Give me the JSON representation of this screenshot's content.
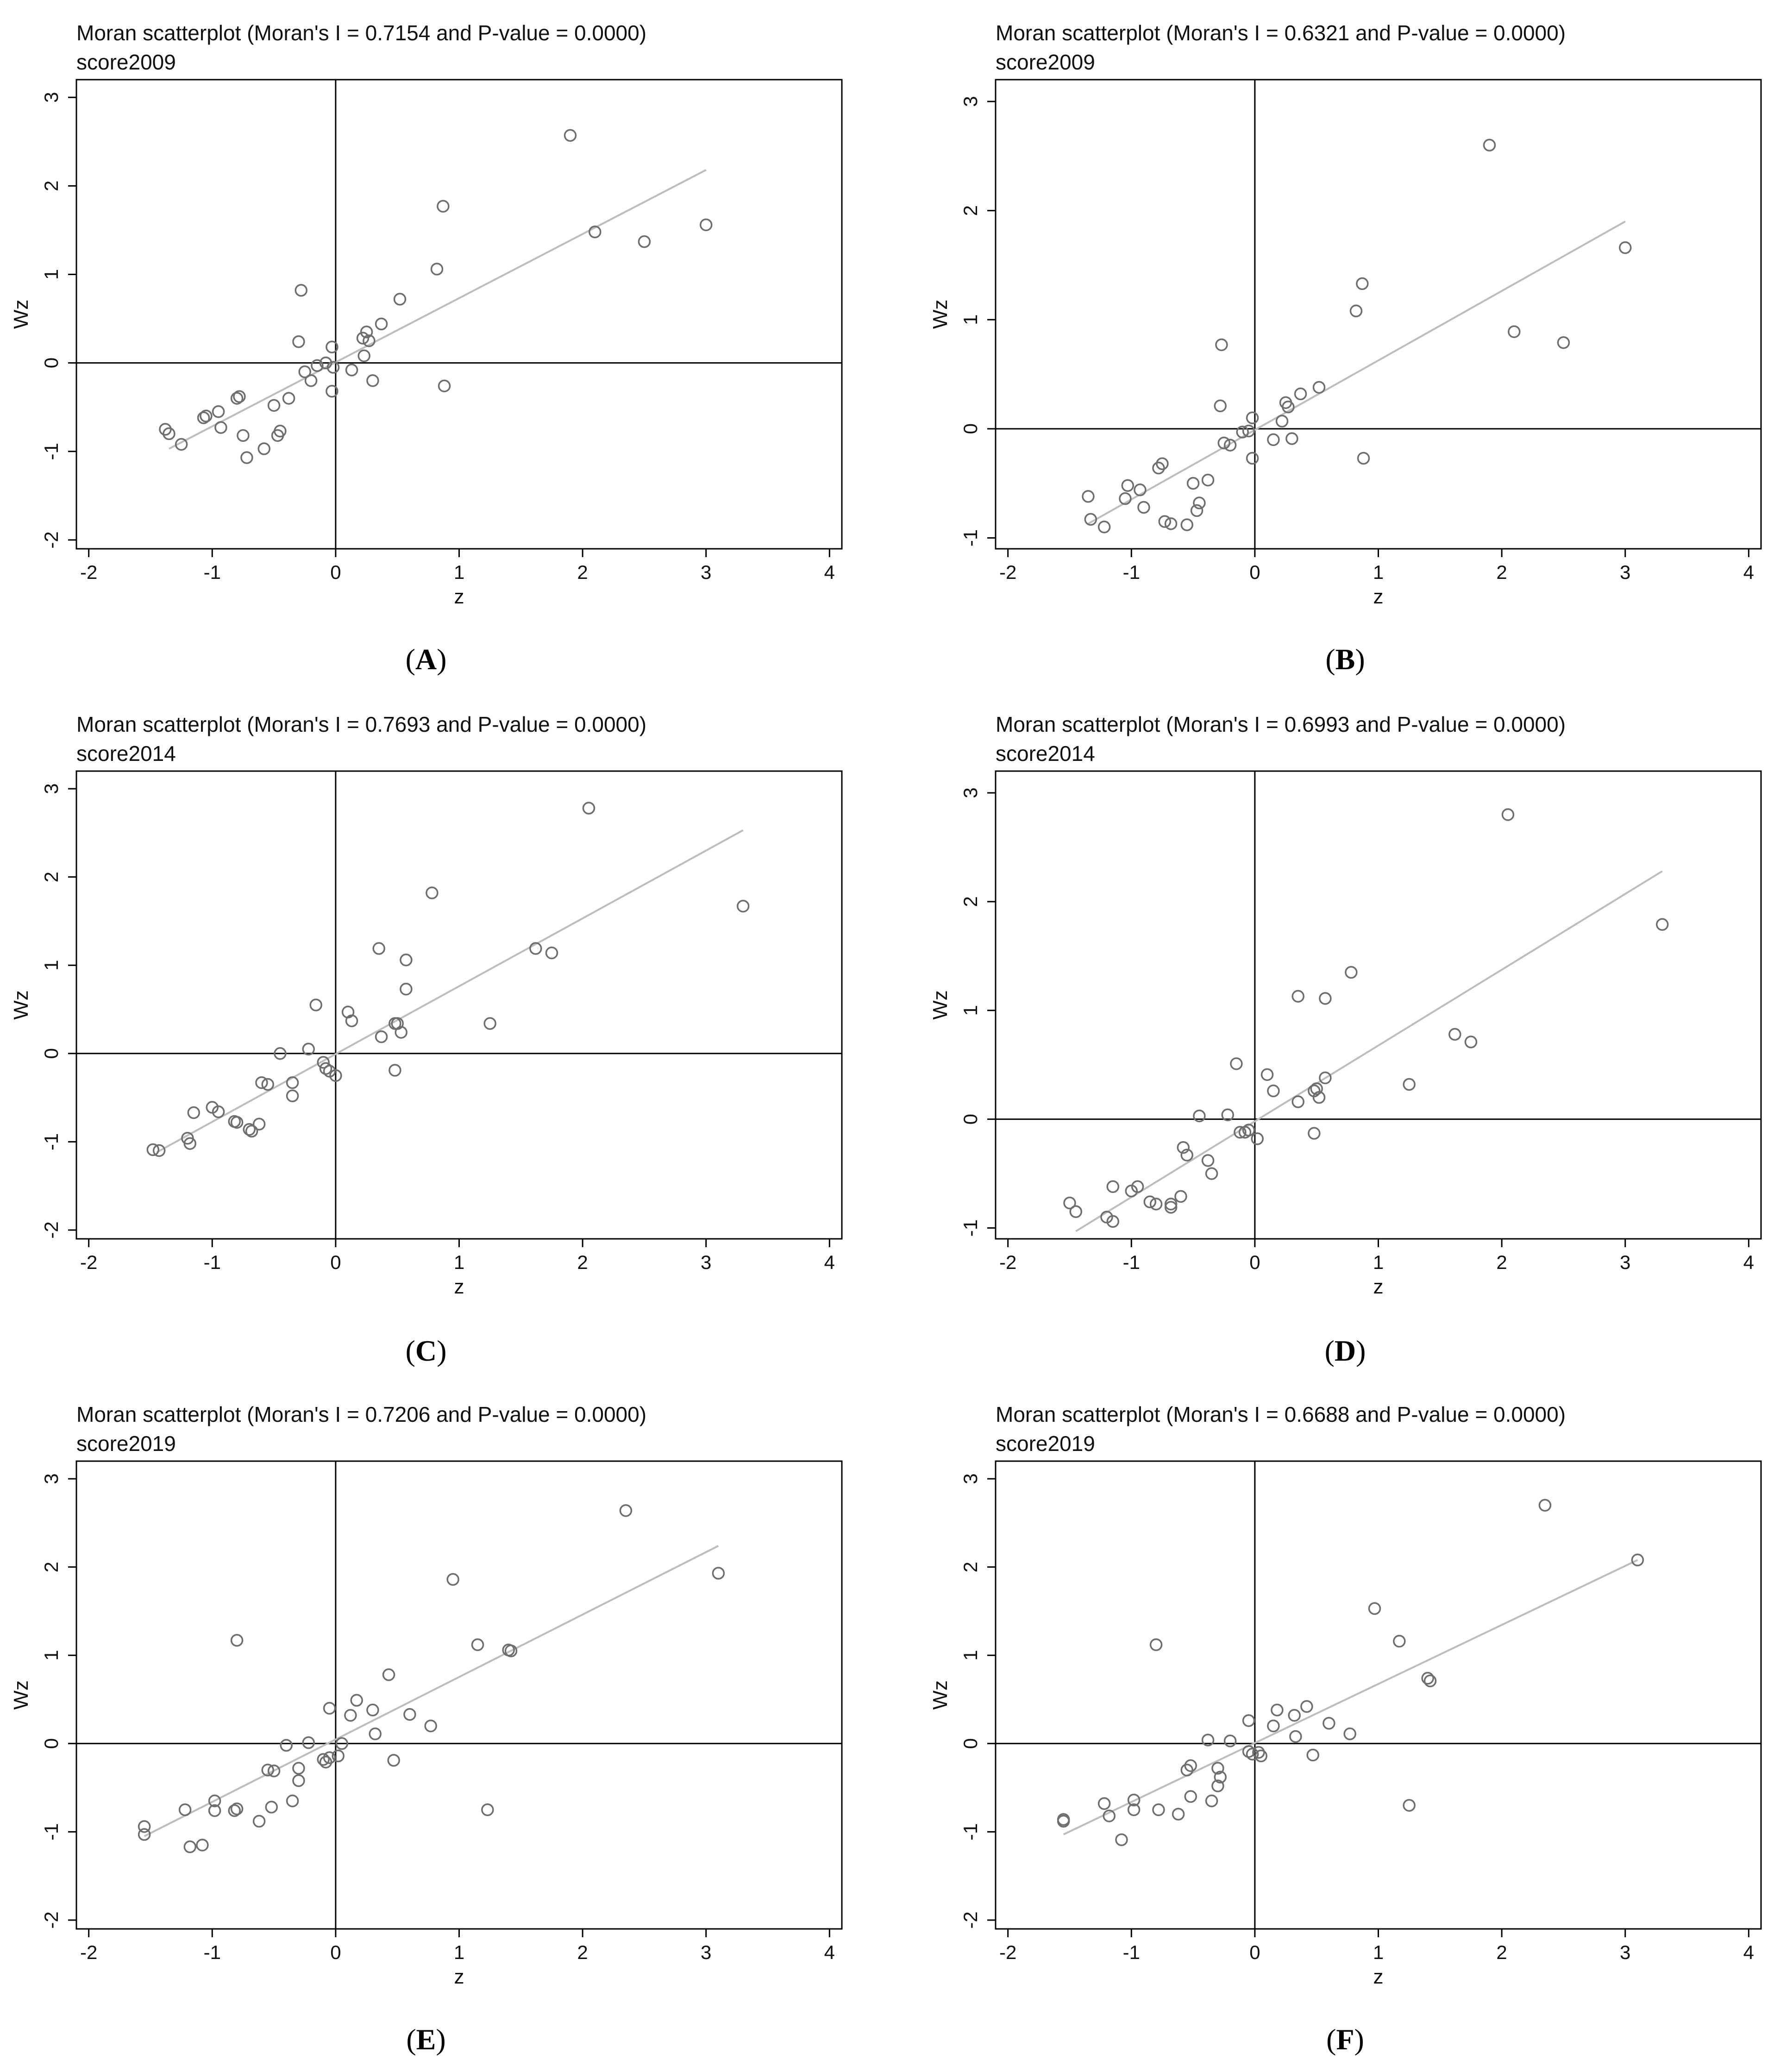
{
  "figure": {
    "panels": [
      {
        "label": "A"
      },
      {
        "label": "B"
      },
      {
        "label": "C"
      },
      {
        "label": "D"
      },
      {
        "label": "E"
      },
      {
        "label": "F"
      }
    ]
  },
  "style": {
    "point_stroke": "#6e6e6e",
    "fit_line": "#bdbdbd",
    "axis": "#000000"
  },
  "chart_data": [
    {
      "type": "scatter",
      "title": "Moran scatterplot (Moran's I = 0.7154 and P-value = 0.0000)",
      "subtitle": "score2009",
      "xlabel": "z",
      "ylabel": "Wz",
      "xlim": [
        -2.1,
        4.1
      ],
      "ylim": [
        -2.1,
        3.2
      ],
      "xticks": [
        -2,
        -1,
        0,
        1,
        2,
        3,
        4
      ],
      "yticks": [
        -2,
        -1,
        0,
        1,
        2,
        3
      ],
      "fit": [
        [
          -1.35,
          -0.97
        ],
        [
          3.0,
          2.18
        ]
      ],
      "points": [
        [
          1.9,
          2.57
        ],
        [
          0.87,
          1.77
        ],
        [
          2.1,
          1.48
        ],
        [
          2.5,
          1.37
        ],
        [
          3.0,
          1.56
        ],
        [
          0.82,
          1.06
        ],
        [
          0.52,
          0.72
        ],
        [
          0.37,
          0.44
        ],
        [
          0.25,
          0.35
        ],
        [
          0.27,
          0.25
        ],
        [
          0.22,
          0.28
        ],
        [
          0.23,
          0.08
        ],
        [
          0.13,
          -0.08
        ],
        [
          0.3,
          -0.2
        ],
        [
          0.88,
          -0.26
        ],
        [
          -0.28,
          0.82
        ],
        [
          -0.3,
          0.24
        ],
        [
          -0.25,
          -0.1
        ],
        [
          -0.2,
          -0.2
        ],
        [
          -0.15,
          -0.03
        ],
        [
          -0.08,
          0.0
        ],
        [
          -0.02,
          -0.05
        ],
        [
          -0.03,
          0.18
        ],
        [
          -0.03,
          -0.32
        ],
        [
          -0.38,
          -0.4
        ],
        [
          -0.5,
          -0.48
        ],
        [
          -0.47,
          -0.82
        ],
        [
          -0.45,
          -0.77
        ],
        [
          -0.58,
          -0.97
        ],
        [
          -0.72,
          -1.07
        ],
        [
          -0.75,
          -0.82
        ],
        [
          -0.8,
          -0.4
        ],
        [
          -0.78,
          -0.38
        ],
        [
          -0.95,
          -0.55
        ],
        [
          -0.93,
          -0.73
        ],
        [
          -1.05,
          -0.6
        ],
        [
          -1.07,
          -0.62
        ],
        [
          -1.25,
          -0.92
        ],
        [
          -1.38,
          -0.75
        ],
        [
          -1.35,
          -0.8
        ]
      ]
    },
    {
      "type": "scatter",
      "title": "Moran scatterplot (Moran's I = 0.6321 and P-value = 0.0000)",
      "subtitle": "score2009",
      "xlabel": "z",
      "ylabel": "Wz",
      "xlim": [
        -2.1,
        4.1
      ],
      "ylim": [
        -1.1,
        3.2
      ],
      "xticks": [
        -2,
        -1,
        0,
        1,
        2,
        3,
        4
      ],
      "yticks": [
        -1,
        0,
        1,
        2,
        3
      ],
      "fit": [
        [
          -1.35,
          -0.87
        ],
        [
          3.0,
          1.9
        ]
      ],
      "points": [
        [
          1.9,
          2.6
        ],
        [
          0.87,
          1.33
        ],
        [
          0.82,
          1.08
        ],
        [
          3.0,
          1.66
        ],
        [
          2.1,
          0.89
        ],
        [
          2.5,
          0.79
        ],
        [
          0.52,
          0.38
        ],
        [
          0.37,
          0.32
        ],
        [
          0.25,
          0.24
        ],
        [
          0.27,
          0.2
        ],
        [
          0.22,
          0.07
        ],
        [
          0.3,
          -0.09
        ],
        [
          0.15,
          -0.1
        ],
        [
          0.88,
          -0.27
        ],
        [
          -0.27,
          0.77
        ],
        [
          -0.28,
          0.21
        ],
        [
          -0.25,
          -0.13
        ],
        [
          -0.2,
          -0.15
        ],
        [
          -0.1,
          -0.03
        ],
        [
          -0.05,
          -0.02
        ],
        [
          -0.02,
          0.1
        ],
        [
          -0.02,
          -0.27
        ],
        [
          -0.38,
          -0.47
        ],
        [
          -0.5,
          -0.5
        ],
        [
          -0.45,
          -0.68
        ],
        [
          -0.47,
          -0.75
        ],
        [
          -0.55,
          -0.88
        ],
        [
          -0.68,
          -0.87
        ],
        [
          -0.73,
          -0.85
        ],
        [
          -0.75,
          -0.32
        ],
        [
          -0.78,
          -0.36
        ],
        [
          -0.93,
          -0.56
        ],
        [
          -0.9,
          -0.72
        ],
        [
          -1.03,
          -0.52
        ],
        [
          -1.05,
          -0.64
        ],
        [
          -1.22,
          -0.9
        ],
        [
          -1.35,
          -0.62
        ],
        [
          -1.33,
          -0.83
        ]
      ]
    },
    {
      "type": "scatter",
      "title": "Moran scatterplot (Moran's I = 0.7693 and P-value = 0.0000)",
      "subtitle": "score2014",
      "xlabel": "z",
      "ylabel": "Wz",
      "xlim": [
        -2.1,
        4.1
      ],
      "ylim": [
        -2.1,
        3.2
      ],
      "xticks": [
        -2,
        -1,
        0,
        1,
        2,
        3,
        4
      ],
      "yticks": [
        -2,
        -1,
        0,
        1,
        2,
        3
      ],
      "fit": [
        [
          -1.45,
          -1.12
        ],
        [
          3.3,
          2.53
        ]
      ],
      "points": [
        [
          2.05,
          2.78
        ],
        [
          3.3,
          1.67
        ],
        [
          0.78,
          1.82
        ],
        [
          0.35,
          1.19
        ],
        [
          0.57,
          1.06
        ],
        [
          1.62,
          1.19
        ],
        [
          1.75,
          1.14
        ],
        [
          0.57,
          0.73
        ],
        [
          0.1,
          0.47
        ],
        [
          0.13,
          0.37
        ],
        [
          1.25,
          0.34
        ],
        [
          0.48,
          0.34
        ],
        [
          0.5,
          0.34
        ],
        [
          0.37,
          0.19
        ],
        [
          0.53,
          0.24
        ],
        [
          0.48,
          -0.19
        ],
        [
          -0.16,
          0.55
        ],
        [
          -0.22,
          0.05
        ],
        [
          -0.45,
          0.0
        ],
        [
          -0.1,
          -0.1
        ],
        [
          -0.08,
          -0.17
        ],
        [
          -0.05,
          -0.2
        ],
        [
          0.0,
          -0.25
        ],
        [
          -0.35,
          -0.33
        ],
        [
          -0.6,
          -0.33
        ],
        [
          -0.55,
          -0.35
        ],
        [
          -0.35,
          -0.48
        ],
        [
          -0.62,
          -0.8
        ],
        [
          -0.7,
          -0.86
        ],
        [
          -0.68,
          -0.88
        ],
        [
          -0.82,
          -0.77
        ],
        [
          -0.8,
          -0.78
        ],
        [
          -1.0,
          -0.61
        ],
        [
          -0.95,
          -0.66
        ],
        [
          -1.15,
          -0.67
        ],
        [
          -1.2,
          -0.96
        ],
        [
          -1.18,
          -1.02
        ],
        [
          -1.48,
          -1.09
        ],
        [
          -1.43,
          -1.1
        ]
      ]
    },
    {
      "type": "scatter",
      "title": "Moran scatterplot (Moran's I = 0.6993 and P-value = 0.0000)",
      "subtitle": "score2014",
      "xlabel": "z",
      "ylabel": "Wz",
      "xlim": [
        -2.1,
        4.1
      ],
      "ylim": [
        -1.1,
        3.2
      ],
      "xticks": [
        -2,
        -1,
        0,
        1,
        2,
        3,
        4
      ],
      "yticks": [
        -1,
        0,
        1,
        2,
        3
      ],
      "fit": [
        [
          -1.45,
          -1.03
        ],
        [
          3.3,
          2.28
        ]
      ],
      "points": [
        [
          2.05,
          2.8
        ],
        [
          3.3,
          1.79
        ],
        [
          0.78,
          1.35
        ],
        [
          0.35,
          1.13
        ],
        [
          0.57,
          1.11
        ],
        [
          1.62,
          0.78
        ],
        [
          1.75,
          0.71
        ],
        [
          0.57,
          0.38
        ],
        [
          0.1,
          0.41
        ],
        [
          0.15,
          0.26
        ],
        [
          1.25,
          0.32
        ],
        [
          0.5,
          0.28
        ],
        [
          0.48,
          0.26
        ],
        [
          0.52,
          0.2
        ],
        [
          0.35,
          0.16
        ],
        [
          0.48,
          -0.13
        ],
        [
          -0.15,
          0.51
        ],
        [
          -0.22,
          0.04
        ],
        [
          -0.45,
          0.03
        ],
        [
          -0.12,
          -0.12
        ],
        [
          -0.08,
          -0.12
        ],
        [
          -0.05,
          -0.1
        ],
        [
          0.02,
          -0.18
        ],
        [
          -0.58,
          -0.26
        ],
        [
          -0.55,
          -0.33
        ],
        [
          -0.38,
          -0.38
        ],
        [
          -0.35,
          -0.5
        ],
        [
          -0.6,
          -0.71
        ],
        [
          -0.68,
          -0.78
        ],
        [
          -0.68,
          -0.81
        ],
        [
          -0.8,
          -0.78
        ],
        [
          -0.85,
          -0.76
        ],
        [
          -1.0,
          -0.66
        ],
        [
          -0.95,
          -0.62
        ],
        [
          -1.15,
          -0.62
        ],
        [
          -1.2,
          -0.9
        ],
        [
          -1.15,
          -0.94
        ],
        [
          -1.45,
          -0.85
        ],
        [
          -1.5,
          -0.77
        ]
      ]
    },
    {
      "type": "scatter",
      "title": "Moran scatterplot (Moran's I = 0.7206 and P-value = 0.0000)",
      "subtitle": "score2019",
      "xlabel": "z",
      "ylabel": "Wz",
      "xlim": [
        -2.1,
        4.1
      ],
      "ylim": [
        -2.1,
        3.2
      ],
      "xticks": [
        -2,
        -1,
        0,
        1,
        2,
        3,
        4
      ],
      "yticks": [
        -2,
        -1,
        0,
        1,
        2,
        3
      ],
      "fit": [
        [
          -1.55,
          -1.05
        ],
        [
          3.1,
          2.24
        ]
      ],
      "points": [
        [
          2.35,
          2.64
        ],
        [
          3.1,
          1.93
        ],
        [
          0.95,
          1.86
        ],
        [
          1.15,
          1.12
        ],
        [
          1.4,
          1.06
        ],
        [
          1.42,
          1.05
        ],
        [
          -0.8,
          1.17
        ],
        [
          0.43,
          0.78
        ],
        [
          0.17,
          0.49
        ],
        [
          -0.05,
          0.4
        ],
        [
          0.3,
          0.38
        ],
        [
          0.6,
          0.33
        ],
        [
          0.12,
          0.32
        ],
        [
          0.77,
          0.2
        ],
        [
          0.32,
          0.11
        ],
        [
          0.47,
          -0.19
        ],
        [
          1.23,
          -0.75
        ],
        [
          -0.22,
          0.01
        ],
        [
          -0.4,
          -0.02
        ],
        [
          0.05,
          0.0
        ],
        [
          -0.1,
          -0.18
        ],
        [
          -0.08,
          -0.21
        ],
        [
          -0.05,
          -0.16
        ],
        [
          0.02,
          -0.14
        ],
        [
          -0.3,
          -0.28
        ],
        [
          -0.55,
          -0.3
        ],
        [
          -0.5,
          -0.31
        ],
        [
          -0.3,
          -0.42
        ],
        [
          -0.35,
          -0.65
        ],
        [
          -0.52,
          -0.72
        ],
        [
          -0.62,
          -0.88
        ],
        [
          -0.8,
          -0.74
        ],
        [
          -0.82,
          -0.76
        ],
        [
          -0.98,
          -0.65
        ],
        [
          -0.98,
          -0.76
        ],
        [
          -1.22,
          -0.75
        ],
        [
          -1.08,
          -1.15
        ],
        [
          -1.18,
          -1.17
        ],
        [
          -1.55,
          -0.94
        ],
        [
          -1.55,
          -1.03
        ]
      ]
    },
    {
      "type": "scatter",
      "title": "Moran scatterplot (Moran's I = 0.6688 and P-value = 0.0000)",
      "subtitle": "score2019",
      "xlabel": "z",
      "ylabel": "Wz",
      "xlim": [
        -2.1,
        4.1
      ],
      "ylim": [
        -2.1,
        3.2
      ],
      "xticks": [
        -2,
        -1,
        0,
        1,
        2,
        3,
        4
      ],
      "yticks": [
        -2,
        -1,
        0,
        1,
        2,
        3
      ],
      "fit": [
        [
          -1.55,
          -1.03
        ],
        [
          3.1,
          2.08
        ]
      ],
      "points": [
        [
          2.35,
          2.7
        ],
        [
          3.1,
          2.08
        ],
        [
          0.97,
          1.53
        ],
        [
          1.17,
          1.16
        ],
        [
          1.4,
          0.74
        ],
        [
          1.42,
          0.71
        ],
        [
          -0.8,
          1.12
        ],
        [
          0.42,
          0.42
        ],
        [
          0.18,
          0.38
        ],
        [
          0.32,
          0.32
        ],
        [
          0.6,
          0.23
        ],
        [
          0.15,
          0.2
        ],
        [
          0.77,
          0.11
        ],
        [
          0.33,
          0.08
        ],
        [
          -0.05,
          0.26
        ],
        [
          0.47,
          -0.13
        ],
        [
          1.25,
          -0.7
        ],
        [
          -0.2,
          0.03
        ],
        [
          -0.38,
          0.04
        ],
        [
          -0.05,
          -0.09
        ],
        [
          -0.02,
          -0.12
        ],
        [
          0.03,
          -0.1
        ],
        [
          0.05,
          -0.14
        ],
        [
          -0.3,
          -0.28
        ],
        [
          -0.52,
          -0.25
        ],
        [
          -0.55,
          -0.3
        ],
        [
          -0.28,
          -0.38
        ],
        [
          -0.3,
          -0.48
        ],
        [
          -0.52,
          -0.6
        ],
        [
          -0.35,
          -0.65
        ],
        [
          -0.62,
          -0.8
        ],
        [
          -0.78,
          -0.75
        ],
        [
          -0.98,
          -0.64
        ],
        [
          -0.98,
          -0.75
        ],
        [
          -1.22,
          -0.68
        ],
        [
          -1.18,
          -0.82
        ],
        [
          -1.08,
          -1.09
        ],
        [
          -1.55,
          -0.86
        ],
        [
          -1.55,
          -0.88
        ]
      ]
    }
  ]
}
